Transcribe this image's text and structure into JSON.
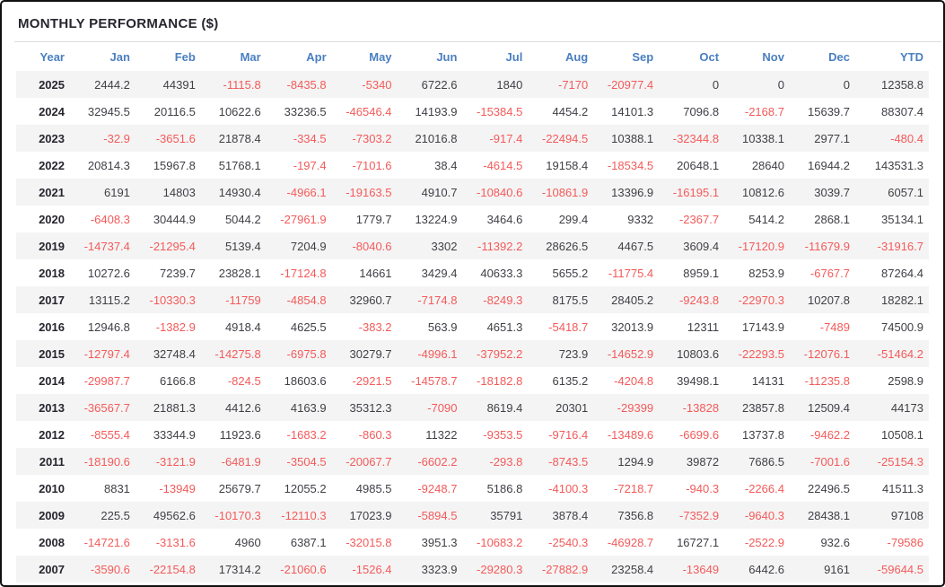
{
  "title": "MONTHLY PERFORMANCE ($)",
  "colors": {
    "border": "#111111",
    "title_text": "#26262e",
    "header_text": "#4a7fc1",
    "value_text": "#3f3f46",
    "negative_text": "#f45a5a",
    "row_stripe": "#f4f4f4",
    "divider": "#dddddd"
  },
  "chart_data": {
    "type": "table",
    "title": "MONTHLY PERFORMANCE ($)",
    "columns": [
      "Year",
      "Jan",
      "Feb",
      "Mar",
      "Apr",
      "May",
      "Jun",
      "Jul",
      "Aug",
      "Sep",
      "Oct",
      "Nov",
      "Dec",
      "YTD"
    ],
    "rows": [
      [
        "2025",
        "2444.2",
        "44391",
        "-1115.8",
        "-8435.8",
        "-5340",
        "6722.6",
        "1840",
        "-7170",
        "-20977.4",
        "0",
        "0",
        "0",
        "12358.8"
      ],
      [
        "2024",
        "32945.5",
        "20116.5",
        "10622.6",
        "33236.5",
        "-46546.4",
        "14193.9",
        "-15384.5",
        "4454.2",
        "14101.3",
        "7096.8",
        "-2168.7",
        "15639.7",
        "88307.4"
      ],
      [
        "2023",
        "-32.9",
        "-3651.6",
        "21878.4",
        "-334.5",
        "-7303.2",
        "21016.8",
        "-917.4",
        "-22494.5",
        "10388.1",
        "-32344.8",
        "10338.1",
        "2977.1",
        "-480.4"
      ],
      [
        "2022",
        "20814.3",
        "15967.8",
        "51768.1",
        "-197.4",
        "-7101.6",
        "38.4",
        "-4614.5",
        "19158.4",
        "-18534.5",
        "20648.1",
        "28640",
        "16944.2",
        "143531.3"
      ],
      [
        "2021",
        "6191",
        "14803",
        "14930.4",
        "-4966.1",
        "-19163.5",
        "4910.7",
        "-10840.6",
        "-10861.9",
        "13396.9",
        "-16195.1",
        "10812.6",
        "3039.7",
        "6057.1"
      ],
      [
        "2020",
        "-6408.3",
        "30444.9",
        "5044.2",
        "-27961.9",
        "1779.7",
        "13224.9",
        "3464.6",
        "299.4",
        "9332",
        "-2367.7",
        "5414.2",
        "2868.1",
        "35134.1"
      ],
      [
        "2019",
        "-14737.4",
        "-21295.4",
        "5139.4",
        "7204.9",
        "-8040.6",
        "3302",
        "-11392.2",
        "28626.5",
        "4467.5",
        "3609.4",
        "-17120.9",
        "-11679.9",
        "-31916.7"
      ],
      [
        "2018",
        "10272.6",
        "7239.7",
        "23828.1",
        "-17124.8",
        "14661",
        "3429.4",
        "40633.3",
        "5655.2",
        "-11775.4",
        "8959.1",
        "8253.9",
        "-6767.7",
        "87264.4"
      ],
      [
        "2017",
        "13115.2",
        "-10330.3",
        "-11759",
        "-4854.8",
        "32960.7",
        "-7174.8",
        "-8249.3",
        "8175.5",
        "28405.2",
        "-9243.8",
        "-22970.3",
        "10207.8",
        "18282.1"
      ],
      [
        "2016",
        "12946.8",
        "-1382.9",
        "4918.4",
        "4625.5",
        "-383.2",
        "563.9",
        "4651.3",
        "-5418.7",
        "32013.9",
        "12311",
        "17143.9",
        "-7489",
        "74500.9"
      ],
      [
        "2015",
        "-12797.4",
        "32748.4",
        "-14275.8",
        "-6975.8",
        "30279.7",
        "-4996.1",
        "-37952.2",
        "723.9",
        "-14652.9",
        "10803.6",
        "-22293.5",
        "-12076.1",
        "-51464.2"
      ],
      [
        "2014",
        "-29987.7",
        "6166.8",
        "-824.5",
        "18603.6",
        "-2921.5",
        "-14578.7",
        "-18182.8",
        "6135.2",
        "-4204.8",
        "39498.1",
        "14131",
        "-11235.8",
        "2598.9"
      ],
      [
        "2013",
        "-36567.7",
        "21881.3",
        "4412.6",
        "4163.9",
        "35312.3",
        "-7090",
        "8619.4",
        "20301",
        "-29399",
        "-13828",
        "23857.8",
        "12509.4",
        "44173"
      ],
      [
        "2012",
        "-8555.4",
        "33344.9",
        "11923.6",
        "-1683.2",
        "-860.3",
        "11322",
        "-9353.5",
        "-9716.4",
        "-13489.6",
        "-6699.6",
        "13737.8",
        "-9462.2",
        "10508.1"
      ],
      [
        "2011",
        "-18190.6",
        "-3121.9",
        "-6481.9",
        "-3504.5",
        "-20067.7",
        "-6602.2",
        "-293.8",
        "-8743.5",
        "1294.9",
        "39872",
        "7686.5",
        "-7001.6",
        "-25154.3"
      ],
      [
        "2010",
        "8831",
        "-13949",
        "25679.7",
        "12055.2",
        "4985.5",
        "-9248.7",
        "5186.8",
        "-4100.3",
        "-7218.7",
        "-940.3",
        "-2266.4",
        "22496.5",
        "41511.3"
      ],
      [
        "2009",
        "225.5",
        "49562.6",
        "-10170.3",
        "-12110.3",
        "17023.9",
        "-5894.5",
        "35791",
        "3878.4",
        "7356.8",
        "-7352.9",
        "-9640.3",
        "28438.1",
        "97108"
      ],
      [
        "2008",
        "-14721.6",
        "-3131.6",
        "4960",
        "6387.1",
        "-32015.8",
        "3951.3",
        "-10683.2",
        "-2540.3",
        "-46928.7",
        "16727.1",
        "-2522.9",
        "932.6",
        "-79586"
      ],
      [
        "2007",
        "-3590.6",
        "-22154.8",
        "17314.2",
        "-21060.6",
        "-1526.4",
        "3323.9",
        "-29280.3",
        "-27882.9",
        "23258.4",
        "-13649",
        "6442.6",
        "9161",
        "-59644.5"
      ]
    ]
  }
}
